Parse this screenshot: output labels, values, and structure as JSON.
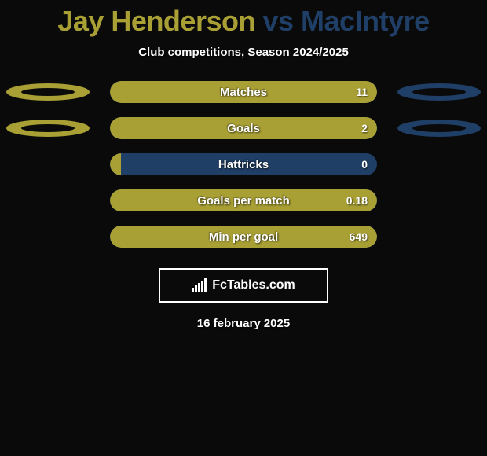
{
  "header": {
    "player1": "Jay Henderson",
    "vs": "vs",
    "player2": "MacIntyre",
    "player1_color": "#a9a035",
    "vs_color": "#203f66",
    "player2_color": "#203f66",
    "subtitle": "Club competitions, Season 2024/2025"
  },
  "chart": {
    "track_color": "#203f66",
    "fill_color": "#a9a035",
    "shape_left_color": "#a9a035",
    "shape_right_color": "#203f66",
    "text_color": "#ffffff",
    "rows": [
      {
        "label": "Matches",
        "value": "11",
        "fill_pct": 100,
        "show_left_shape": true,
        "show_right_shape": true
      },
      {
        "label": "Goals",
        "value": "2",
        "fill_pct": 100,
        "show_left_shape": true,
        "show_right_shape": true
      },
      {
        "label": "Hattricks",
        "value": "0",
        "fill_pct": 4,
        "show_left_shape": false,
        "show_right_shape": false
      },
      {
        "label": "Goals per match",
        "value": "0.18",
        "fill_pct": 100,
        "show_left_shape": false,
        "show_right_shape": false
      },
      {
        "label": "Min per goal",
        "value": "649",
        "fill_pct": 100,
        "show_left_shape": false,
        "show_right_shape": false
      }
    ]
  },
  "branding": {
    "text": "FcTables.com"
  },
  "footer": {
    "date": "16 february 2025"
  }
}
